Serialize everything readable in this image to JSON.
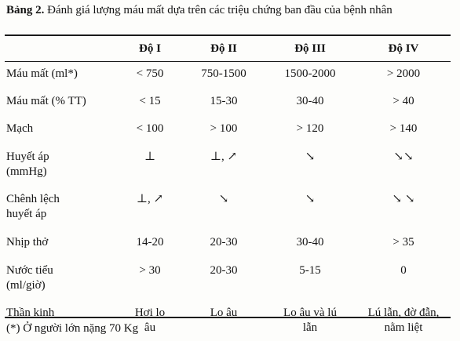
{
  "caption": {
    "label": "Bảng 2.",
    "text": " Đánh giá lượng máu mất dựa trên các triệu chứng ban đầu của bệnh nhân"
  },
  "header": [
    "",
    "Độ I",
    "Độ II",
    "Độ III",
    "Độ IV"
  ],
  "rows": [
    {
      "label": "Máu mất (ml*)",
      "values": [
        "< 750",
        "750-1500",
        "1500-2000",
        "> 2000"
      ]
    },
    {
      "label": "Máu mất (% TT)",
      "values": [
        "< 15",
        "15-30",
        "30-40",
        "> 40"
      ]
    },
    {
      "label": "Mạch",
      "values": [
        "< 100",
        "> 100",
        "> 120",
        "> 140"
      ]
    },
    {
      "label": "Huyết áp\n(mmHg)",
      "values": [
        "⊥",
        "⊥, ↗",
        "↘",
        "↘↘"
      ]
    },
    {
      "label": "Chênh lệch\nhuyết áp",
      "values": [
        "⊥, ↗",
        "↘",
        "↘",
        "↘ ↘"
      ]
    },
    {
      "label": "Nhịp thở",
      "values": [
        "14-20",
        "20-30",
        "30-40",
        "> 35"
      ]
    },
    {
      "label": "Nước tiểu\n(ml/giờ)",
      "values": [
        "> 30",
        "20-30",
        "5-15",
        "0"
      ]
    },
    {
      "label": "Thần kinh",
      "values": [
        "Hơi lo\nâu",
        "Lo âu",
        "Lo âu và lú\nlẫn",
        "Lú lẫn, đờ đẫn,\nnằm liệt"
      ]
    }
  ],
  "footnote": "(*)  Ở người lớn nặng 70 Kg"
}
